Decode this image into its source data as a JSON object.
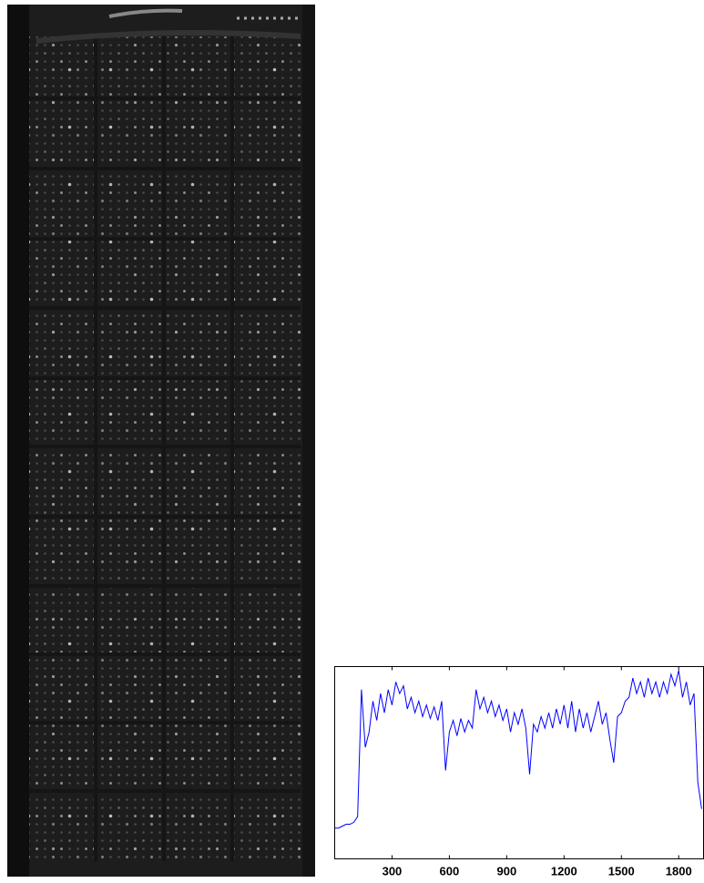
{
  "chart_data": {
    "type": "line",
    "color": "#0000ff",
    "x": [
      0,
      20,
      40,
      60,
      80,
      100,
      120,
      140,
      160,
      180,
      200,
      220,
      240,
      260,
      280,
      300,
      320,
      340,
      360,
      380,
      400,
      420,
      440,
      460,
      480,
      500,
      520,
      540,
      560,
      580,
      600,
      620,
      640,
      660,
      680,
      700,
      720,
      740,
      760,
      780,
      800,
      820,
      840,
      860,
      880,
      900,
      920,
      940,
      960,
      980,
      1000,
      1020,
      1040,
      1060,
      1080,
      1100,
      1120,
      1140,
      1160,
      1180,
      1200,
      1220,
      1240,
      1260,
      1280,
      1300,
      1320,
      1340,
      1360,
      1380,
      1400,
      1420,
      1440,
      1460,
      1480,
      1500,
      1520,
      1540,
      1560,
      1580,
      1600,
      1620,
      1640,
      1660,
      1680,
      1700,
      1720,
      1740,
      1760,
      1780,
      1800,
      1820,
      1840,
      1860,
      1880,
      1900,
      1920
    ],
    "values": [
      16,
      16,
      17,
      18,
      18,
      19,
      22,
      88,
      58,
      66,
      82,
      72,
      86,
      76,
      88,
      80,
      92,
      86,
      90,
      78,
      84,
      76,
      82,
      74,
      80,
      73,
      79,
      72,
      82,
      46,
      66,
      72,
      64,
      73,
      66,
      72,
      68,
      88,
      78,
      84,
      76,
      82,
      74,
      80,
      72,
      78,
      66,
      76,
      70,
      78,
      68,
      44,
      70,
      66,
      74,
      68,
      76,
      68,
      78,
      70,
      80,
      68,
      82,
      66,
      78,
      68,
      76,
      66,
      74,
      82,
      70,
      76,
      62,
      50,
      74,
      76,
      82,
      84,
      94,
      86,
      92,
      84,
      94,
      86,
      92,
      84,
      92,
      86,
      96,
      90,
      98,
      84,
      92,
      80,
      86,
      40,
      26
    ],
    "xlim": [
      0,
      1930
    ],
    "ylim": [
      0,
      100
    ],
    "xticks": [
      300,
      600,
      900,
      1200,
      1500,
      1800
    ]
  }
}
